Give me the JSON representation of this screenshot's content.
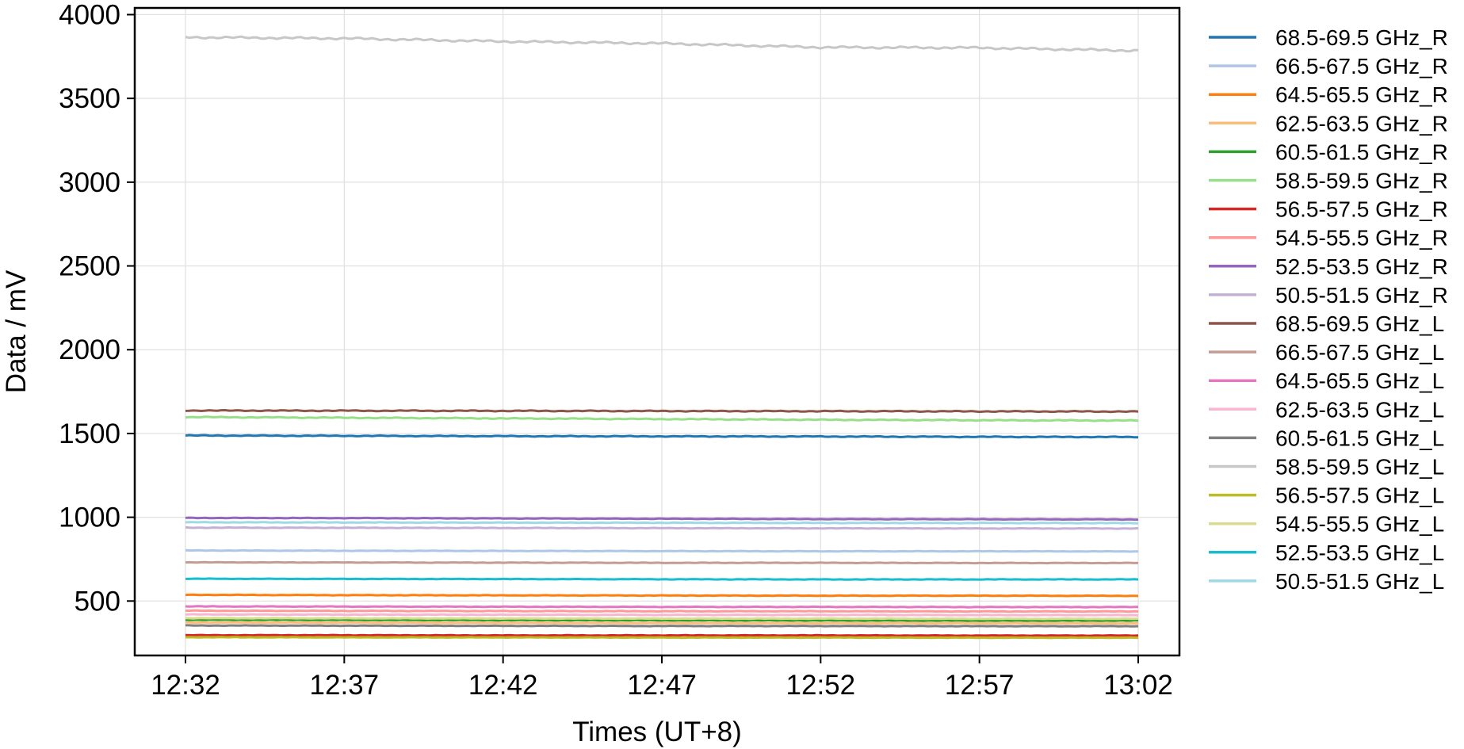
{
  "chart_data": {
    "type": "line",
    "xlabel": "Times (UT+8)",
    "ylabel": "Data / mV",
    "x_ticks": [
      "12:32",
      "12:37",
      "12:42",
      "12:47",
      "12:52",
      "12:57",
      "13:02"
    ],
    "x_range": [
      "12:32",
      "13:02"
    ],
    "y_ticks": [
      500,
      1000,
      1500,
      2000,
      2500,
      3000,
      3500,
      4000
    ],
    "ylim": [
      175,
      4040
    ],
    "grid": true,
    "legend_position": "outside-right",
    "series": [
      {
        "name": "68.5-69.5 GHz_R",
        "color": "#1f77b4",
        "values": [
          1488,
          1486,
          1484,
          1483,
          1482,
          1480,
          1479
        ]
      },
      {
        "name": "66.5-67.5 GHz_R",
        "color": "#aec7e8",
        "values": [
          802,
          800,
          799,
          798,
          797,
          797,
          796
        ]
      },
      {
        "name": "64.5-65.5 GHz_R",
        "color": "#ff7f0e",
        "values": [
          537,
          535,
          534,
          533,
          532,
          532,
          531
        ]
      },
      {
        "name": "62.5-63.5 GHz_R",
        "color": "#ffbb78",
        "values": [
          372,
          371,
          370,
          369,
          368,
          368,
          367
        ]
      },
      {
        "name": "60.5-61.5 GHz_R",
        "color": "#2ca02c",
        "values": [
          388,
          387,
          386,
          385,
          384,
          383,
          383
        ]
      },
      {
        "name": "58.5-59.5 GHz_R",
        "color": "#98df8a",
        "values": [
          1598,
          1594,
          1590,
          1586,
          1582,
          1579,
          1577
        ]
      },
      {
        "name": "56.5-57.5 GHz_R",
        "color": "#d62728",
        "values": [
          296,
          296,
          295,
          295,
          295,
          294,
          294
        ]
      },
      {
        "name": "54.5-55.5 GHz_R",
        "color": "#ff9896",
        "values": [
          442,
          441,
          440,
          439,
          439,
          438,
          438
        ]
      },
      {
        "name": "52.5-53.5 GHz_R",
        "color": "#9467bd",
        "values": [
          996,
          995,
          993,
          991,
          989,
          988,
          987
        ]
      },
      {
        "name": "50.5-51.5 GHz_R",
        "color": "#c5b0d5",
        "values": [
          938,
          937,
          936,
          935,
          934,
          933,
          933
        ]
      },
      {
        "name": "68.5-69.5 GHz_L",
        "color": "#8c564b",
        "values": [
          1637,
          1636,
          1635,
          1634,
          1633,
          1632,
          1631
        ]
      },
      {
        "name": "66.5-67.5 GHz_L",
        "color": "#c49c94",
        "values": [
          731,
          730,
          729,
          728,
          728,
          727,
          727
        ]
      },
      {
        "name": "64.5-65.5 GHz_L",
        "color": "#e377c2",
        "values": [
          468,
          467,
          466,
          465,
          465,
          464,
          464
        ]
      },
      {
        "name": "62.5-63.5 GHz_L",
        "color": "#f7b6d2",
        "values": [
          420,
          419,
          418,
          417,
          417,
          416,
          416
        ]
      },
      {
        "name": "60.5-61.5 GHz_L",
        "color": "#7f7f7f",
        "values": [
          354,
          353,
          352,
          351,
          351,
          350,
          350
        ]
      },
      {
        "name": "58.5-59.5 GHz_L",
        "color": "#c7c7c7",
        "values": [
          3865,
          3858,
          3840,
          3828,
          3805,
          3802,
          3785
        ]
      },
      {
        "name": "56.5-57.5 GHz_L",
        "color": "#bcbd22",
        "values": [
          284,
          283,
          283,
          282,
          282,
          281,
          281
        ]
      },
      {
        "name": "54.5-55.5 GHz_L",
        "color": "#dbdb8d",
        "values": [
          398,
          397,
          396,
          395,
          395,
          394,
          394
        ]
      },
      {
        "name": "52.5-53.5 GHz_L",
        "color": "#17becf",
        "values": [
          633,
          632,
          631,
          630,
          629,
          629,
          629
        ]
      },
      {
        "name": "50.5-51.5 GHz_L",
        "color": "#9edae5",
        "values": [
          970,
          969,
          968,
          967,
          966,
          966,
          965
        ]
      }
    ]
  }
}
